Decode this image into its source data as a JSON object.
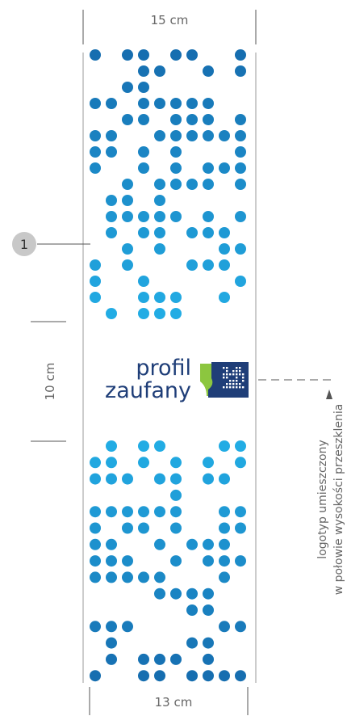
{
  "dimensions": {
    "top": "15 cm",
    "left": "10 cm",
    "bottom": "13 cm"
  },
  "callout": "1",
  "logo": {
    "line1": "profil",
    "line2": "zaufany"
  },
  "note": {
    "line1": "logotyp umieszczony",
    "line2": "w połowie wysokości przeszklenia"
  }
}
